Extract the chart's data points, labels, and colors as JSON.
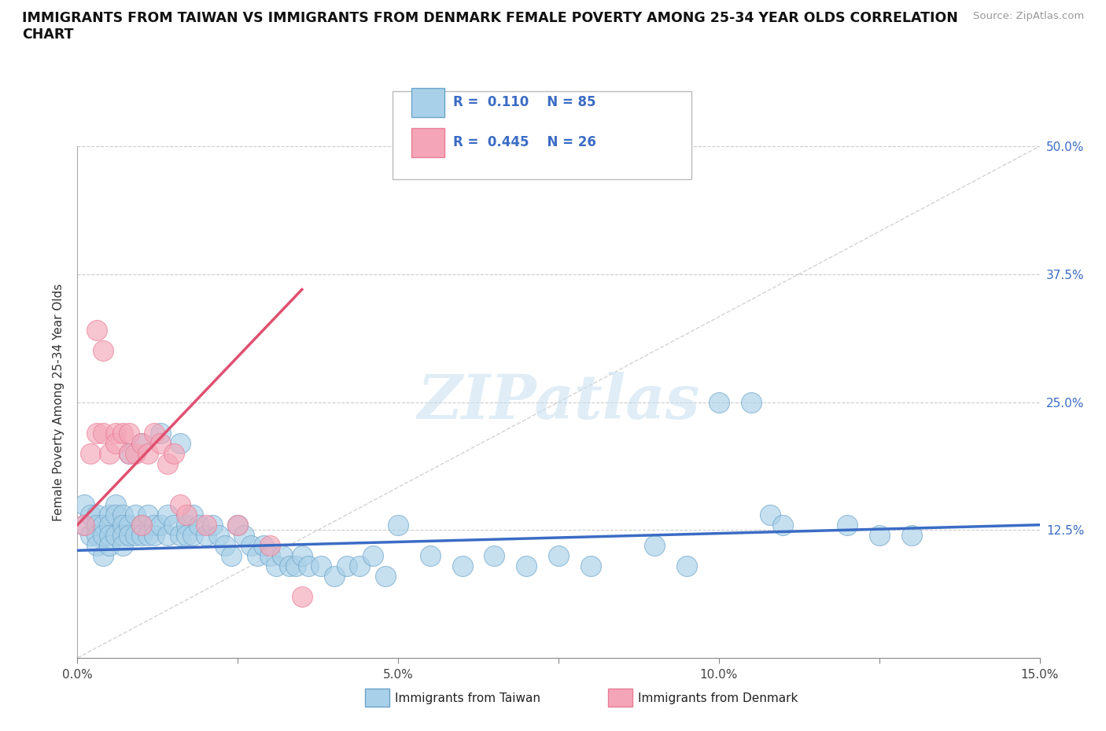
{
  "title": "IMMIGRANTS FROM TAIWAN VS IMMIGRANTS FROM DENMARK FEMALE POVERTY AMONG 25-34 YEAR OLDS CORRELATION\nCHART",
  "source_text": "Source: ZipAtlas.com",
  "ylabel": "Female Poverty Among 25-34 Year Olds",
  "xlim": [
    0,
    0.15
  ],
  "ylim": [
    0,
    0.5
  ],
  "xtick_vals": [
    0.0,
    0.025,
    0.05,
    0.075,
    0.1,
    0.125,
    0.15
  ],
  "xtick_labels": [
    "0.0%",
    "",
    "5.0%",
    "",
    "10.0%",
    "",
    "15.0%"
  ],
  "ytick_vals": [
    0.0,
    0.125,
    0.25,
    0.375,
    0.5
  ],
  "ytick_labels_right": [
    "",
    "12.5%",
    "25.0%",
    "37.5%",
    "50.0%"
  ],
  "taiwan_color": "#A8D0E8",
  "denmark_color": "#F4A6B8",
  "taiwan_edge": "#6BA3C8",
  "denmark_edge": "#E87C96",
  "taiwan_R": 0.11,
  "taiwan_N": 85,
  "denmark_R": 0.445,
  "denmark_N": 26,
  "taiwan_line_color": "#3B6CC5",
  "denmark_line_color": "#E05070",
  "diagonal_color": "#C8C8C8",
  "watermark": "ZIPatlas",
  "legend_R_color": "#3B6CC5",
  "taiwan_scatter_x": [
    0.001,
    0.001,
    0.002,
    0.002,
    0.003,
    0.003,
    0.003,
    0.003,
    0.004,
    0.004,
    0.004,
    0.005,
    0.005,
    0.005,
    0.005,
    0.006,
    0.006,
    0.006,
    0.007,
    0.007,
    0.007,
    0.007,
    0.008,
    0.008,
    0.008,
    0.009,
    0.009,
    0.01,
    0.01,
    0.01,
    0.011,
    0.011,
    0.012,
    0.012,
    0.013,
    0.013,
    0.014,
    0.014,
    0.015,
    0.016,
    0.016,
    0.017,
    0.017,
    0.018,
    0.018,
    0.019,
    0.02,
    0.021,
    0.022,
    0.023,
    0.024,
    0.025,
    0.026,
    0.027,
    0.028,
    0.029,
    0.03,
    0.031,
    0.032,
    0.033,
    0.034,
    0.035,
    0.036,
    0.038,
    0.04,
    0.042,
    0.044,
    0.046,
    0.048,
    0.05,
    0.055,
    0.06,
    0.065,
    0.07,
    0.075,
    0.08,
    0.09,
    0.095,
    0.1,
    0.105,
    0.108,
    0.11,
    0.12,
    0.125,
    0.13
  ],
  "taiwan_scatter_y": [
    0.13,
    0.15,
    0.14,
    0.12,
    0.14,
    0.13,
    0.12,
    0.11,
    0.13,
    0.12,
    0.1,
    0.14,
    0.13,
    0.12,
    0.11,
    0.15,
    0.14,
    0.12,
    0.14,
    0.13,
    0.12,
    0.11,
    0.2,
    0.13,
    0.12,
    0.14,
    0.12,
    0.21,
    0.13,
    0.12,
    0.14,
    0.12,
    0.13,
    0.12,
    0.22,
    0.13,
    0.14,
    0.12,
    0.13,
    0.21,
    0.12,
    0.13,
    0.12,
    0.14,
    0.12,
    0.13,
    0.12,
    0.13,
    0.12,
    0.11,
    0.1,
    0.13,
    0.12,
    0.11,
    0.1,
    0.11,
    0.1,
    0.09,
    0.1,
    0.09,
    0.09,
    0.1,
    0.09,
    0.09,
    0.08,
    0.09,
    0.09,
    0.1,
    0.08,
    0.13,
    0.1,
    0.09,
    0.1,
    0.09,
    0.1,
    0.09,
    0.11,
    0.09,
    0.25,
    0.25,
    0.14,
    0.13,
    0.13,
    0.12,
    0.12
  ],
  "denmark_scatter_x": [
    0.001,
    0.002,
    0.003,
    0.003,
    0.004,
    0.004,
    0.005,
    0.006,
    0.006,
    0.007,
    0.008,
    0.008,
    0.009,
    0.01,
    0.01,
    0.011,
    0.012,
    0.013,
    0.014,
    0.015,
    0.016,
    0.017,
    0.02,
    0.025,
    0.03,
    0.035
  ],
  "denmark_scatter_y": [
    0.13,
    0.2,
    0.32,
    0.22,
    0.3,
    0.22,
    0.2,
    0.22,
    0.21,
    0.22,
    0.2,
    0.22,
    0.2,
    0.21,
    0.13,
    0.2,
    0.22,
    0.21,
    0.19,
    0.2,
    0.15,
    0.14,
    0.13,
    0.13,
    0.11,
    0.06
  ],
  "taiwan_line_x": [
    0.0,
    0.15
  ],
  "taiwan_line_y": [
    0.105,
    0.13
  ],
  "denmark_line_x": [
    0.0,
    0.035
  ],
  "denmark_line_y": [
    0.13,
    0.36
  ]
}
